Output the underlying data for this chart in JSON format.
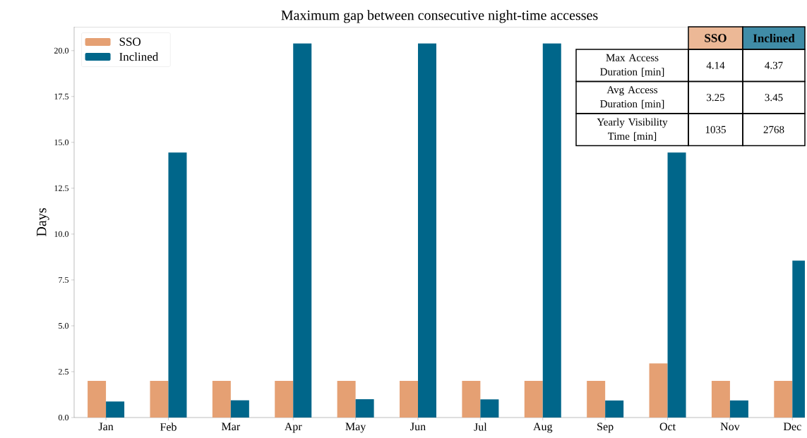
{
  "chart_data": {
    "type": "bar",
    "title": "Maximum gap between consecutive night-time accesses",
    "ylabel": "Days",
    "categories": [
      "Jan",
      "Feb",
      "Mar",
      "Apr",
      "May",
      "Jun",
      "Jul",
      "Aug",
      "Sep",
      "Oct",
      "Nov",
      "Dec"
    ],
    "series": [
      {
        "name": "SSO",
        "color": "#e5a073",
        "values": [
          2.0,
          2.0,
          2.0,
          2.0,
          2.0,
          2.0,
          2.0,
          2.0,
          2.0,
          2.95,
          2.0,
          2.0
        ]
      },
      {
        "name": "Inclined",
        "color": "#00668a",
        "values": [
          0.87,
          14.45,
          0.94,
          20.4,
          1.0,
          20.4,
          0.99,
          20.4,
          0.93,
          14.45,
          0.93,
          8.55
        ]
      }
    ],
    "ylim": [
      0,
      21.3
    ],
    "yticks": [
      {
        "value": 0,
        "label": "0.0"
      },
      2.5,
      {
        "value": 5,
        "label": "5.0"
      },
      7.5,
      {
        "value": 10,
        "label": "10.0"
      },
      12.5,
      {
        "value": 15,
        "label": "15.0"
      },
      17.5,
      {
        "value": 20,
        "label": "20.0"
      }
    ],
    "legend": "top left",
    "annotations": [
      "Max Access Duration [min]",
      "4.14",
      "4.37",
      "Avg Access Duration [min]",
      "3.25",
      "3.45",
      "Yearly Visibility Time [min]",
      "1035",
      "2768"
    ]
  }
}
